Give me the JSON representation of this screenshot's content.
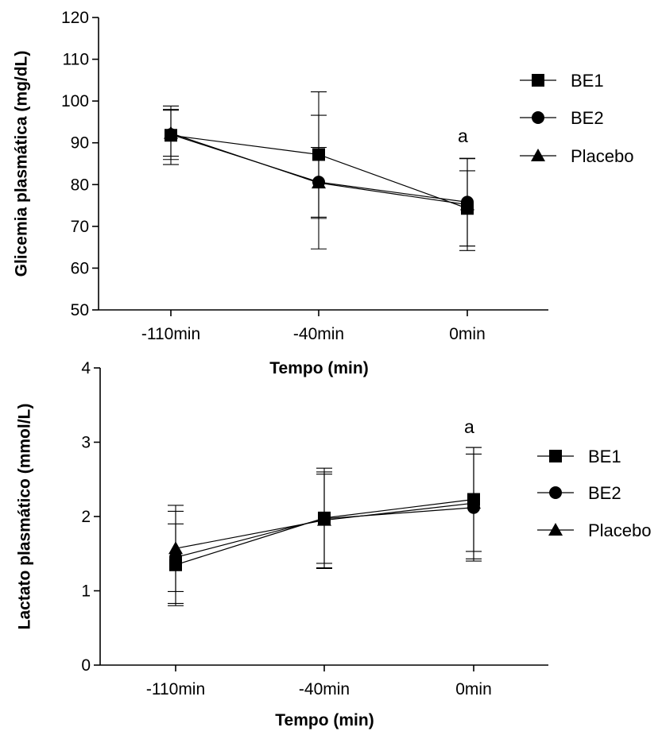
{
  "chart_data": [
    {
      "type": "line",
      "ylabel": "Glicemia plasmática (mg/dL)",
      "xlabel": "Tempo (min)",
      "categories": [
        "-110min",
        "-40min",
        "0min"
      ],
      "ylim": [
        50,
        120
      ],
      "yticks": [
        50,
        60,
        70,
        80,
        90,
        100,
        110,
        120
      ],
      "marker_colors": "#000000",
      "series": [
        {
          "name": "BE1",
          "marker": "square",
          "values": [
            91.8,
            87.2,
            74.3
          ],
          "error": [
            7.0,
            15.0,
            9.0
          ]
        },
        {
          "name": "BE2",
          "marker": "circle",
          "values": [
            92.0,
            80.6,
            75.8
          ],
          "error": [
            6.0,
            16.0,
            10.5
          ]
        },
        {
          "name": "Placebo",
          "marker": "triangle",
          "values": [
            92.3,
            80.4,
            75.2
          ],
          "error": [
            5.5,
            8.5,
            11.0
          ]
        }
      ],
      "annotations": [
        {
          "category": "0min",
          "text": "a"
        }
      ],
      "legend_position": "right"
    },
    {
      "type": "line",
      "ylabel": "Lactato plasmático (mmol/L)",
      "xlabel": "Tempo (min)",
      "categories": [
        "-110min",
        "-40min",
        "0min"
      ],
      "ylim": [
        0,
        4
      ],
      "yticks": [
        0,
        1,
        2,
        3,
        4
      ],
      "marker_colors": "#000000",
      "series": [
        {
          "name": "BE1",
          "marker": "square",
          "values": [
            1.35,
            1.98,
            2.23
          ],
          "error": [
            0.55,
            0.67,
            0.7
          ]
        },
        {
          "name": "BE2",
          "marker": "circle",
          "values": [
            1.45,
            1.97,
            2.12
          ],
          "error": [
            0.62,
            0.6,
            0.72
          ]
        },
        {
          "name": "Placebo",
          "marker": "triangle",
          "values": [
            1.57,
            1.95,
            2.18
          ],
          "error": [
            0.58,
            0.65,
            0.75
          ]
        }
      ],
      "annotations": [
        {
          "category": "0min",
          "text": "a"
        }
      ],
      "legend_position": "right"
    }
  ]
}
